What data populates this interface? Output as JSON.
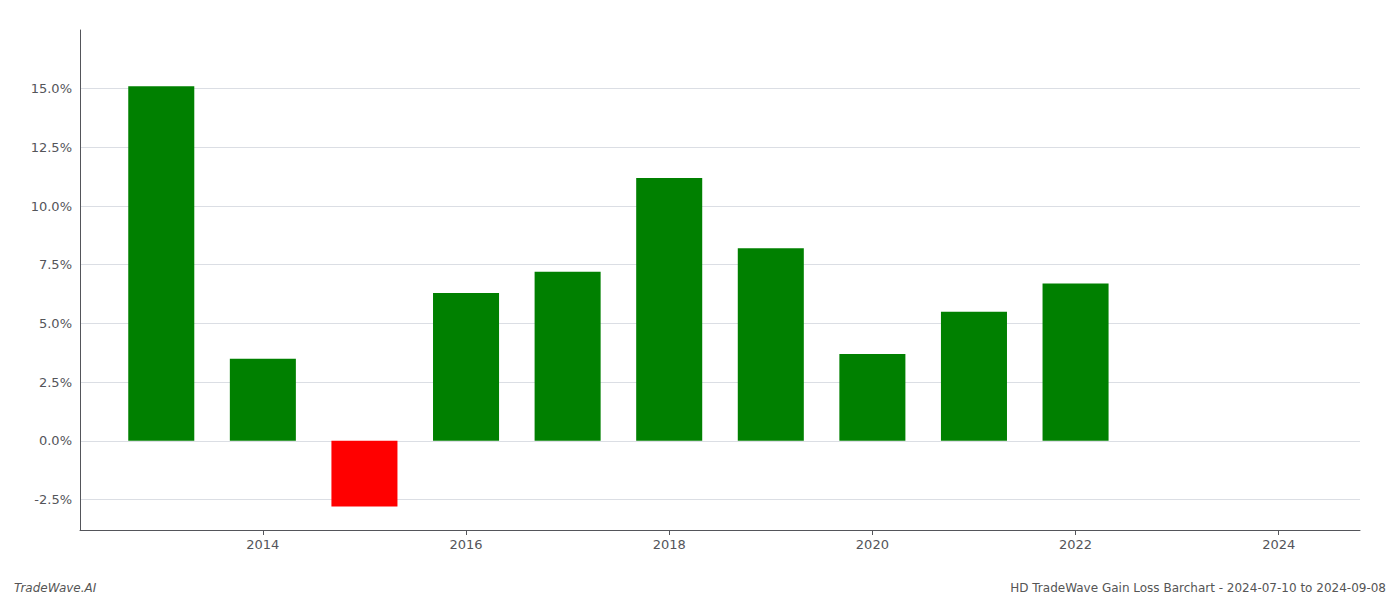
{
  "chart_data": {
    "type": "bar",
    "x": [
      2013,
      2014,
      2015,
      2016,
      2017,
      2018,
      2019,
      2020,
      2021,
      2022,
      2023
    ],
    "values": [
      0.151,
      0.035,
      -0.028,
      0.063,
      0.072,
      0.112,
      0.082,
      0.037,
      0.055,
      0.067,
      0.0
    ],
    "colors": [
      "#008000",
      "#008000",
      "#ff0000",
      "#008000",
      "#008000",
      "#008000",
      "#008000",
      "#008000",
      "#008000",
      "#008000",
      "#008000"
    ],
    "xlim": [
      2012.2,
      2024.8
    ],
    "xticks": [
      2014,
      2016,
      2018,
      2020,
      2022,
      2024
    ],
    "ylim": [
      -0.038,
      0.175
    ],
    "yticks": [
      {
        "value": -0.025,
        "label": "-2.5%"
      },
      {
        "value": 0.0,
        "label": "0.0%"
      },
      {
        "value": 0.025,
        "label": "2.5%"
      },
      {
        "value": 0.05,
        "label": "5.0%"
      },
      {
        "value": 0.075,
        "label": "7.5%"
      },
      {
        "value": 0.1,
        "label": "10.0%"
      },
      {
        "value": 0.125,
        "label": "12.5%"
      },
      {
        "value": 0.15,
        "label": "15.0%"
      }
    ],
    "grid": true,
    "annotations": [
      "TradeWave.AI",
      "HD TradeWave Gain Loss Barchart - 2024-07-10 to 2024-09-08"
    ]
  }
}
